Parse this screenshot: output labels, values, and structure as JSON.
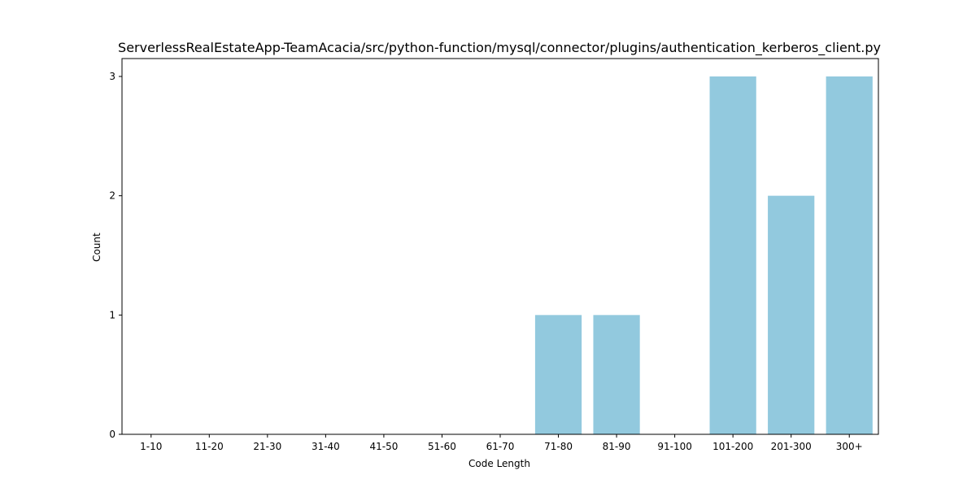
{
  "chart_data": {
    "type": "bar",
    "title": "ServerlessRealEstateApp-TeamAcacia/src/python-function/mysql/connector/plugins/authentication_kerberos_client.py",
    "xlabel": "Code Length",
    "ylabel": "Count",
    "categories": [
      "1-10",
      "11-20",
      "21-30",
      "31-40",
      "41-50",
      "51-60",
      "61-70",
      "71-80",
      "81-90",
      "91-100",
      "101-200",
      "201-300",
      "300+"
    ],
    "values": [
      0,
      0,
      0,
      0,
      0,
      0,
      0,
      1,
      1,
      0,
      3,
      2,
      3
    ],
    "ylim": [
      0,
      3.15
    ],
    "yticks": [
      "0",
      "1",
      "2",
      "3"
    ],
    "bar_color": "#92c9de",
    "grid": false,
    "legend": "none"
  }
}
